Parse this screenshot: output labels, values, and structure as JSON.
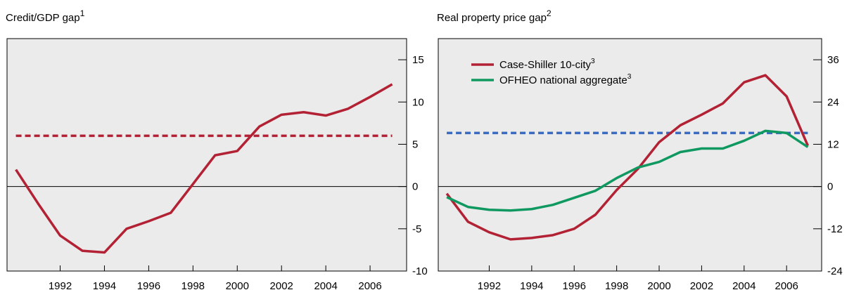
{
  "chart_data": [
    {
      "type": "line",
      "title": "Credit/GDP gap",
      "title_sup": "1",
      "x": [
        1990,
        1991,
        1992,
        1993,
        1994,
        1995,
        1996,
        1997,
        1998,
        1999,
        2000,
        2001,
        2002,
        2003,
        2004,
        2005,
        2006,
        2007
      ],
      "series": [
        {
          "color": "#b22234",
          "values": [
            2,
            -2,
            -5.8,
            -7.6,
            -7.8,
            -5,
            -4.1,
            -3.1,
            0.3,
            3.7,
            4.2,
            7.1,
            8.5,
            8.8,
            8.4,
            9.2,
            10.6,
            12.1
          ]
        }
      ],
      "threshold": 6,
      "threshold_color": "#b22234",
      "xlim": [
        1989.6,
        2007.65
      ],
      "xticks": [
        1992,
        1994,
        1996,
        1998,
        2000,
        2002,
        2004,
        2006
      ],
      "ylim": [
        -10,
        17.5
      ],
      "yticks": [
        -10,
        -5,
        0,
        5,
        10,
        15
      ],
      "y_axis_side": "right"
    },
    {
      "type": "line",
      "title": "Real property price gap",
      "title_sup": "2",
      "x": [
        1990,
        1991,
        1992,
        1993,
        1994,
        1995,
        1996,
        1997,
        1998,
        1999,
        2000,
        2001,
        2002,
        2003,
        2004,
        2005,
        2006,
        2007
      ],
      "series": [
        {
          "name": "Case-Shiller 10-city",
          "name_sup": "3",
          "color": "#b22234",
          "values": [
            -2,
            -10,
            -13,
            -15,
            -14.6,
            -13.8,
            -12,
            -8,
            -1,
            5,
            12.6,
            17.4,
            20.4,
            23.6,
            29.6,
            31.6,
            25.6,
            11.6
          ]
        },
        {
          "name": "OFHEO national aggregate",
          "name_sup": "3",
          "color": "#0f9960",
          "values": [
            -3,
            -5.8,
            -6.6,
            -6.8,
            -6.4,
            -5.2,
            -3.2,
            -1.2,
            2.4,
            5.4,
            7,
            9.8,
            10.8,
            10.8,
            13,
            15.8,
            15.2,
            11.2
          ]
        }
      ],
      "threshold": 15.2,
      "threshold_color": "#3a6bc0",
      "xlim": [
        1989.6,
        2007.65
      ],
      "xticks": [
        1992,
        1994,
        1996,
        1998,
        2000,
        2002,
        2004,
        2006
      ],
      "ylim": [
        -24,
        42
      ],
      "yticks": [
        -24,
        -12,
        0,
        12,
        24,
        36
      ],
      "y_axis_side": "right",
      "legend": "top-left"
    }
  ]
}
